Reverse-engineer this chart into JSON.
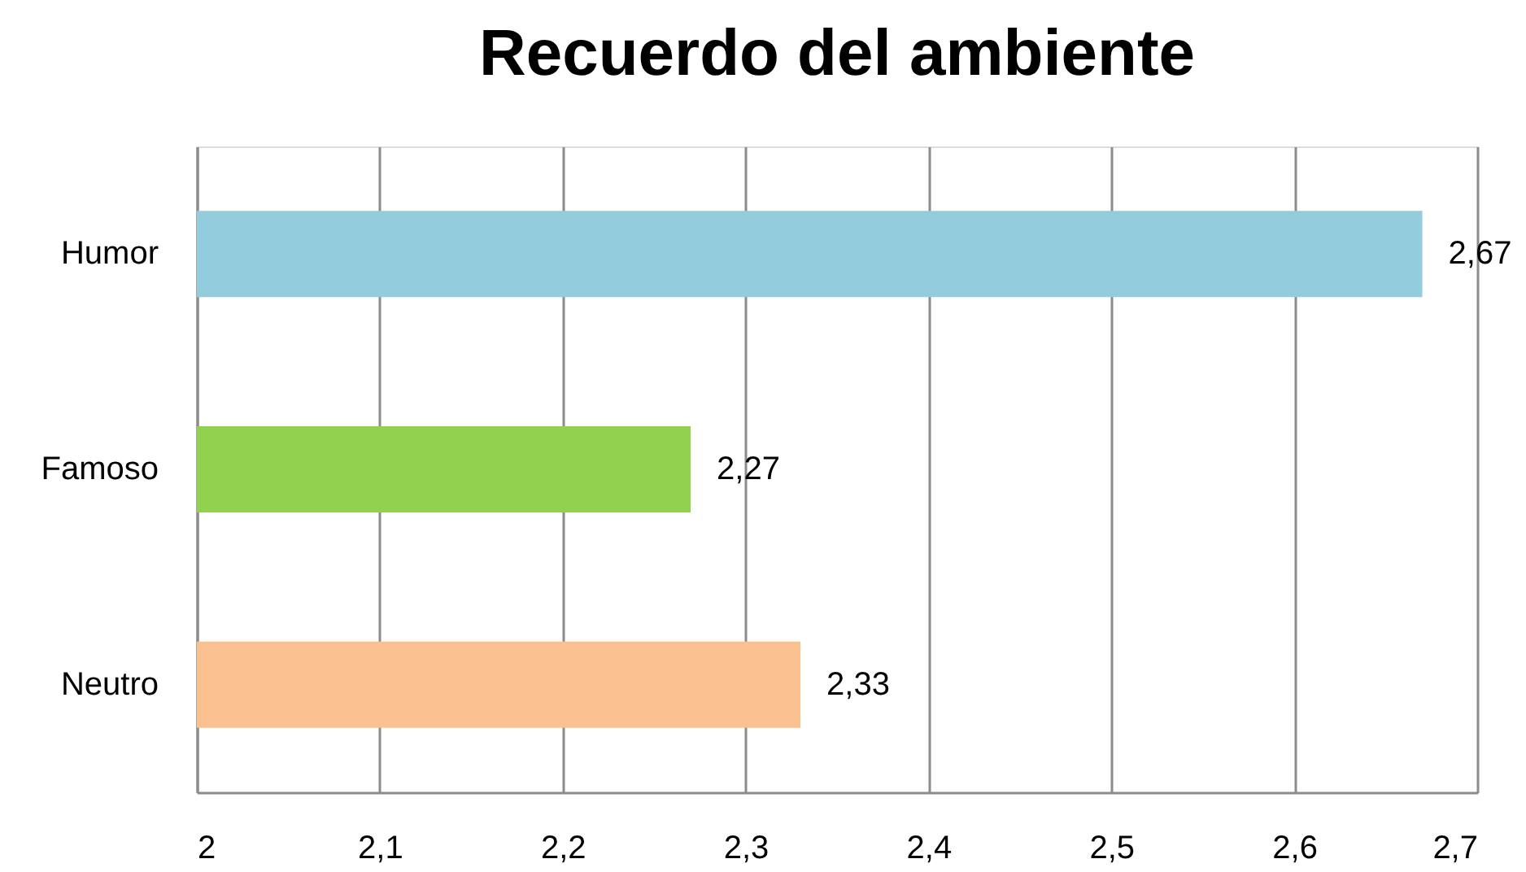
{
  "chart_data": {
    "type": "bar",
    "orientation": "horizontal",
    "title": "Recuerdo del ambiente",
    "categories": [
      "Humor",
      "Famoso",
      "Neutro"
    ],
    "values": [
      2.67,
      2.27,
      2.33
    ],
    "colors": [
      "#93cddd",
      "#92d050",
      "#fac090"
    ],
    "value_labels": [
      "2,67",
      "2,27",
      "2,33"
    ],
    "xlim": [
      2,
      2.7
    ],
    "xticks": [
      2,
      {
        "value": 2.1,
        "label": "2,1"
      },
      {
        "value": 2.2,
        "label": "2,2"
      },
      {
        "value": 2.3,
        "label": "2,3"
      },
      {
        "value": 2.4,
        "label": "2,4"
      },
      {
        "value": 2.5,
        "label": "2,5"
      },
      {
        "value": 2.6,
        "label": "2,6"
      },
      {
        "value": 2.7,
        "label": "2,7"
      }
    ],
    "grid": "x"
  }
}
